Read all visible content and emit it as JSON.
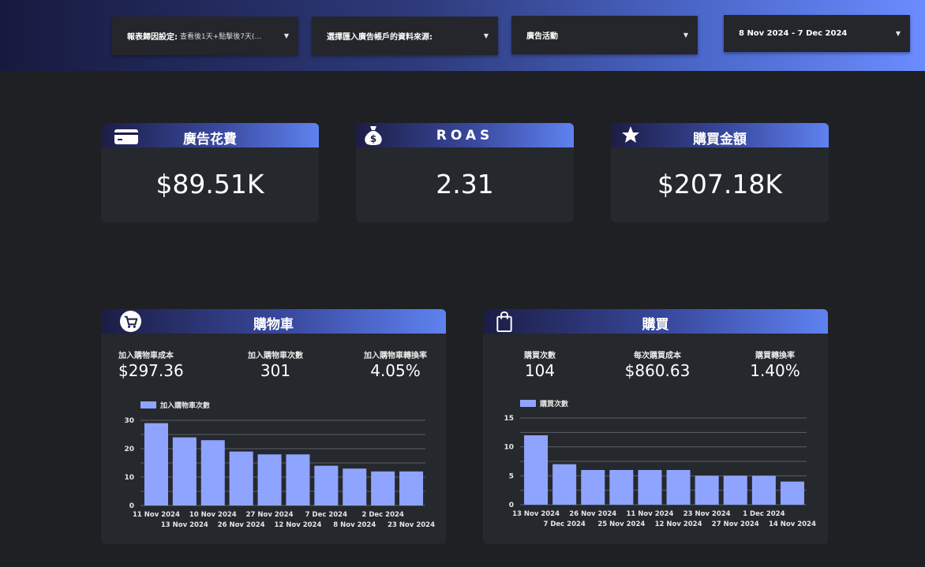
{
  "filters": [
    {
      "label": "報表歸因設定:",
      "value": "查看後1天+點擊後7天(..."
    },
    {
      "label": "選擇匯入廣告帳戶的資料來源:",
      "value": ""
    },
    {
      "label": "廣告活動",
      "value": ""
    },
    {
      "label": "8 Nov 2024 - 7 Dec 2024",
      "value": ""
    }
  ],
  "kpis": [
    {
      "title": "廣告花費",
      "value": "$89.51K",
      "icon": "credit-card-icon"
    },
    {
      "title": "ROAS",
      "value": "2.31",
      "icon": "money-bag-icon"
    },
    {
      "title": "購買金額",
      "value": "$207.18K",
      "icon": "star-icon"
    }
  ],
  "cart_panel": {
    "title": "購物車",
    "icon": "shopping-cart-icon",
    "metrics": [
      {
        "label": "加入購物車成本",
        "value": "$297.36"
      },
      {
        "label": "加入購物車次數",
        "value": "301"
      },
      {
        "label": "加入購物車轉換率",
        "value": "4.05%"
      }
    ]
  },
  "purchase_panel": {
    "title": "購買",
    "icon": "shopping-bag-icon",
    "metrics": [
      {
        "label": "購買次數",
        "value": "104"
      },
      {
        "label": "每次購買成本",
        "value": "$860.63"
      },
      {
        "label": "購買轉換率",
        "value": "1.40%"
      }
    ]
  },
  "colors": {
    "bar": "#8fa4ff",
    "accent": "#5f82f0",
    "panel": "#25282d",
    "background": "#1f2023"
  },
  "chart_data": [
    {
      "type": "bar",
      "series": [
        {
          "name": "加入購物車次數",
          "values": [
            29,
            24,
            23,
            19,
            18,
            18,
            14,
            13,
            12,
            12
          ]
        }
      ],
      "categories": [
        "11 Nov 2024",
        "13 Nov 2024",
        "10 Nov 2024",
        "26 Nov 2024",
        "27 Nov 2024",
        "12 Nov 2024",
        "7 Dec 2024",
        "8 Nov 2024",
        "2 Dec 2024",
        "23 Nov 2024"
      ],
      "yticks": [
        0,
        10,
        20,
        30
      ],
      "ylim": [
        0,
        30
      ],
      "grid": true,
      "legend": "top-left"
    },
    {
      "type": "bar",
      "series": [
        {
          "name": "購買次數",
          "values": [
            12,
            7,
            6,
            6,
            6,
            6,
            5,
            5,
            5,
            4
          ]
        }
      ],
      "categories": [
        "13 Nov 2024",
        "7 Dec 2024",
        "26 Nov 2024",
        "25 Nov 2024",
        "11 Nov 2024",
        "12 Nov 2024",
        "23 Nov 2024",
        "27 Nov 2024",
        "1 Dec 2024",
        "14 Nov 2024"
      ],
      "yticks": [
        0,
        5,
        10,
        15
      ],
      "ylim": [
        0,
        15
      ],
      "grid": true,
      "legend": "top-left"
    }
  ]
}
